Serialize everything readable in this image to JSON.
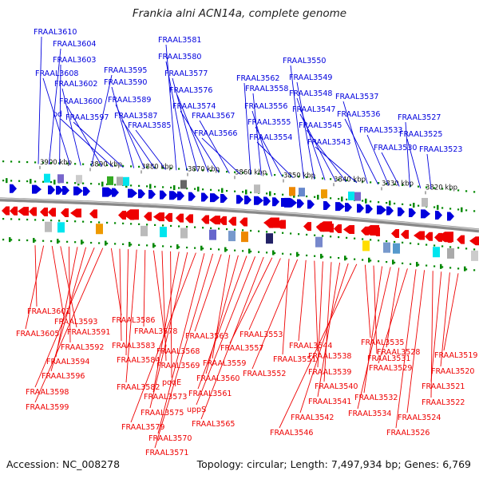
{
  "title": "Frankia alni ACN14a, complete genome",
  "footer": {
    "accession": "Accession: NC_008278",
    "topology": "Topology: circular; Length: 7,497,934 bp; Genes: 6,769"
  },
  "colors": {
    "forward": "#0000dd",
    "reverse": "#ee0000",
    "ticks": "#008800",
    "backbone": "#888888"
  },
  "scale_labels": [
    "3900 kbp",
    "3890 kbp",
    "3880 kbp",
    "3870 kbp",
    "3860 kbp",
    "3850 kbp",
    "3840 kbp",
    "3830 kbp",
    "3820 kbp"
  ],
  "top_genes": [
    "FRAAL3610",
    "FRAAL3604",
    "FRAAL3603",
    "FRAAL3608",
    "FRAAL3602",
    "FRAAL3595",
    "FRAAL3600",
    "pd",
    "FRAAL3597",
    "FRAAL3590",
    "FRAAL3589",
    "FRAAL3587",
    "FRAAL3585",
    "FRAAL3581",
    "FRAAL3580",
    "FRAAL3577",
    "FRAAL3576",
    "FRAAL3574",
    "FRAAL3567",
    "FRAAL3566",
    "FRAAL3562",
    "FRAAL3558",
    "FRAAL3556",
    "FRAAL3555",
    "FRAAL3554",
    "FRAAL3550",
    "FRAAL3549",
    "FRAAL3548",
    "FRAAL3547",
    "FRAAL3545",
    "FRAAL3543",
    "FRAAL3537",
    "FRAAL3536",
    "FRAAL3533",
    "FRAAL3530",
    "FRAAL3527",
    "FRAAL3525",
    "FRAAL3523"
  ],
  "bottom_genes": [
    "FRAAL3601",
    "FRAAL3605",
    "FRAAL3593",
    "FRAAL3591",
    "FRAAL3592",
    "FRAAL3594",
    "FRAAL3596",
    "FRAAL3598",
    "FRAAL3599",
    "FRAAL3586",
    "FRAAL3583",
    "FRAAL3584",
    "FRAAL3582",
    "FRAAL3578",
    "FRAAL3568",
    "FRAAL3569",
    "pqqE",
    "FRAAL3573",
    "FRAAL3575",
    "FRAAL3579",
    "FRAAL3570",
    "FRAAL3571",
    "FRAAL3563",
    "FRAAL3559",
    "FRAAL3560",
    "FRAAL3561",
    "uppS",
    "FRAAL3565",
    "FRAAL3557",
    "FRAAL3553",
    "FRAAL3551",
    "FRAAL3552",
    "FRAAL3544",
    "FRAAL3538",
    "FRAAL3539",
    "FRAAL3540",
    "FRAAL3541",
    "FRAAL3542",
    "FRAAL3546",
    "FRAAL3535",
    "FRAAL3531",
    "FRAAL3532",
    "FRAAL3534",
    "FRAAL3528",
    "FRAAL3529",
    "FRAAL3526",
    "FRAAL3524",
    "FRAAL3522",
    "FRAAL3521",
    "FRAAL3520",
    "FRAAL3519"
  ]
}
